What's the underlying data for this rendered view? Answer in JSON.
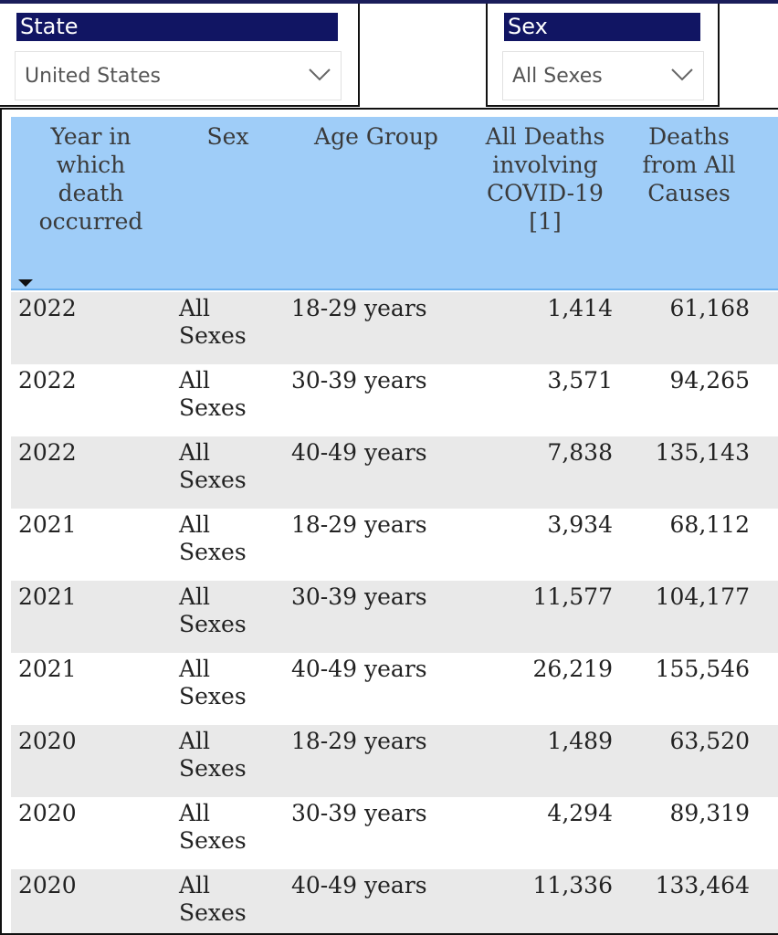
{
  "filters": {
    "state": {
      "title": "State",
      "value": "United States",
      "icon": "chevron-down-icon"
    },
    "sex": {
      "title": "Sex",
      "value": "All Sexes",
      "icon": "chevron-down-icon"
    }
  },
  "table": {
    "columns": {
      "year": "Year in which death occurred",
      "sex": "Sex",
      "age": "Age Group",
      "covid": "All Deaths involving COVID-19 [1]",
      "all": "Deaths from All Causes"
    },
    "rows": [
      {
        "year": "2022",
        "sex": "All Sexes",
        "age": "18-29 years",
        "covid": "1,414",
        "all": "61,168"
      },
      {
        "year": "2022",
        "sex": "All Sexes",
        "age": "30-39 years",
        "covid": "3,571",
        "all": "94,265"
      },
      {
        "year": "2022",
        "sex": "All Sexes",
        "age": "40-49 years",
        "covid": "7,838",
        "all": "135,143"
      },
      {
        "year": "2021",
        "sex": "All Sexes",
        "age": "18-29 years",
        "covid": "3,934",
        "all": "68,112"
      },
      {
        "year": "2021",
        "sex": "All Sexes",
        "age": "30-39 years",
        "covid": "11,577",
        "all": "104,177"
      },
      {
        "year": "2021",
        "sex": "All Sexes",
        "age": "40-49 years",
        "covid": "26,219",
        "all": "155,546"
      },
      {
        "year": "2020",
        "sex": "All Sexes",
        "age": "18-29 years",
        "covid": "1,489",
        "all": "63,520"
      },
      {
        "year": "2020",
        "sex": "All Sexes",
        "age": "30-39 years",
        "covid": "4,294",
        "all": "89,319"
      },
      {
        "year": "2020",
        "sex": "All Sexes",
        "age": "40-49 years",
        "covid": "11,336",
        "all": "133,464"
      }
    ]
  },
  "colors": {
    "slicer_title_bg": "#111563",
    "header_bg": "#9fcdf8",
    "row_alt_bg": "#e9e9e9"
  }
}
